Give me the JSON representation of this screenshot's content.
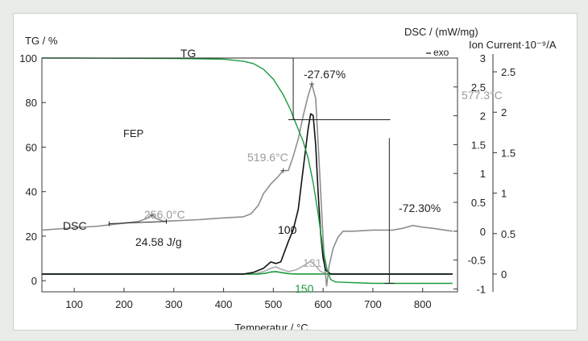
{
  "chart_data": {
    "type": "line",
    "title": "",
    "xlabel": "Temperatur / °C",
    "sample_label": "FEP",
    "x_ticks": [
      100,
      200,
      300,
      400,
      500,
      600,
      700,
      800
    ],
    "xlim": [
      35,
      870
    ],
    "axes": {
      "tg": {
        "label": "TG / %",
        "ticks": [
          0,
          20,
          40,
          60,
          80,
          100
        ],
        "range": [
          -5,
          100
        ]
      },
      "dsc": {
        "label": "DSC / (mW/mg)",
        "exo_label": "exo",
        "ticks": [
          -1.0,
          -0.5,
          0,
          0.5,
          1.0,
          1.5,
          2.0,
          2.5,
          3.0
        ],
        "range": [
          -1.05,
          3.0
        ]
      },
      "ion": {
        "label": "Ion Current·10⁻⁹/A",
        "ticks": [
          0,
          0.5,
          1.0,
          1.5,
          2.0,
          2.5
        ],
        "range": [
          -0.22,
          2.67
        ]
      }
    },
    "series": [
      {
        "name": "TG",
        "axis": "tg",
        "color": "#1a9a3c",
        "points": [
          [
            35,
            100
          ],
          [
            100,
            100
          ],
          [
            200,
            99.9
          ],
          [
            300,
            99.8
          ],
          [
            400,
            99.5
          ],
          [
            440,
            98.6
          ],
          [
            460,
            97.5
          ],
          [
            480,
            95
          ],
          [
            500,
            90.5
          ],
          [
            520,
            83.5
          ],
          [
            535,
            76.5
          ],
          [
            540,
            73.5
          ],
          [
            550,
            68
          ],
          [
            560,
            62.5
          ],
          [
            570,
            55
          ],
          [
            580,
            44
          ],
          [
            590,
            30
          ],
          [
            600,
            14
          ],
          [
            608,
            5
          ],
          [
            615,
            0.5
          ],
          [
            625,
            -0.6
          ],
          [
            700,
            -1.2
          ],
          [
            860,
            -1.2
          ]
        ]
      },
      {
        "name": "DSC",
        "axis": "dsc",
        "color": "#8e8e8e",
        "points": [
          [
            35,
            0.02
          ],
          [
            100,
            0.06
          ],
          [
            150,
            0.09
          ],
          [
            200,
            0.14
          ],
          [
            230,
            0.17
          ],
          [
            245,
            0.22
          ],
          [
            256,
            0.28
          ],
          [
            265,
            0.22
          ],
          [
            280,
            0.17
          ],
          [
            300,
            0.18
          ],
          [
            350,
            0.2
          ],
          [
            400,
            0.23
          ],
          [
            440,
            0.25
          ],
          [
            455,
            0.3
          ],
          [
            470,
            0.45
          ],
          [
            480,
            0.65
          ],
          [
            495,
            0.82
          ],
          [
            510,
            0.95
          ],
          [
            519.6,
            1.05
          ],
          [
            530,
            1.05
          ],
          [
            540,
            1.3
          ],
          [
            550,
            1.6
          ],
          [
            560,
            2.0
          ],
          [
            570,
            2.35
          ],
          [
            577.3,
            2.55
          ],
          [
            585,
            2.3
          ],
          [
            592,
            1.2
          ],
          [
            598,
            0.2
          ],
          [
            603,
            -0.6
          ],
          [
            607,
            -0.95
          ],
          [
            612,
            -0.6
          ],
          [
            620,
            -0.3
          ],
          [
            630,
            -0.1
          ],
          [
            640,
            0.0
          ],
          [
            660,
            0.0
          ],
          [
            700,
            0.02
          ],
          [
            740,
            0.02
          ],
          [
            760,
            0.05
          ],
          [
            780,
            0.1
          ],
          [
            800,
            0.07
          ],
          [
            820,
            0.05
          ],
          [
            860,
            0.0
          ]
        ]
      },
      {
        "name": "100",
        "axis": "ion",
        "color": "#111111",
        "points": [
          [
            35,
            0
          ],
          [
            440,
            0
          ],
          [
            460,
            0.02
          ],
          [
            480,
            0.07
          ],
          [
            495,
            0.15
          ],
          [
            505,
            0.13
          ],
          [
            515,
            0.15
          ],
          [
            530,
            0.4
          ],
          [
            540,
            0.55
          ],
          [
            550,
            0.8
          ],
          [
            560,
            1.3
          ],
          [
            570,
            1.8
          ],
          [
            575,
            1.98
          ],
          [
            580,
            1.96
          ],
          [
            585,
            1.6
          ],
          [
            590,
            1.0
          ],
          [
            595,
            0.5
          ],
          [
            600,
            0.2
          ],
          [
            605,
            0.05
          ],
          [
            615,
            0
          ],
          [
            860,
            0
          ]
        ]
      },
      {
        "name": "131",
        "axis": "ion",
        "color": "#aaaaaa",
        "points": [
          [
            35,
            0
          ],
          [
            460,
            0
          ],
          [
            480,
            0.03
          ],
          [
            495,
            0.07
          ],
          [
            505,
            0.09
          ],
          [
            515,
            0.06
          ],
          [
            530,
            0.03
          ],
          [
            545,
            0.05
          ],
          [
            560,
            0.1
          ],
          [
            575,
            0.16
          ],
          [
            585,
            0.1
          ],
          [
            595,
            0.03
          ],
          [
            610,
            0
          ],
          [
            860,
            0
          ]
        ]
      },
      {
        "name": "150",
        "axis": "ion",
        "color": "#1a9a3c",
        "points": [
          [
            35,
            0
          ],
          [
            470,
            0
          ],
          [
            485,
            0.01
          ],
          [
            495,
            0.025
          ],
          [
            505,
            0.03
          ],
          [
            515,
            0.02
          ],
          [
            530,
            0.005
          ],
          [
            545,
            0
          ],
          [
            860,
            0
          ]
        ]
      }
    ],
    "annotations": {
      "tg_top": "-27.67%",
      "tg_bottom": "-72.30%",
      "peak_low": "256.0°C",
      "peak_shoulder": "519.6°C",
      "peak_main": "577.3°C",
      "enthalpy": "24.58 J/g"
    }
  }
}
